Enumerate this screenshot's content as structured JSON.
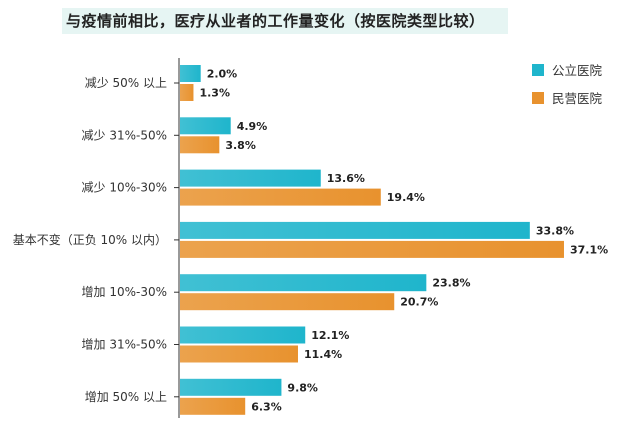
{
  "chart_data": {
    "type": "bar",
    "orientation": "horizontal",
    "title": "与疫情前相比，医疗从业者的工作量变化（按医院类型比较）",
    "categories": [
      "减少 50% 以上",
      "减少 31%-50%",
      "减少 10%-30%",
      "基本不变（正负 10% 以内）",
      "增加 10%-30%",
      "增加 31%-50%",
      "增加 50% 以上"
    ],
    "series": [
      {
        "name": "公立医院",
        "color": "#1fb5cc",
        "values": [
          2.0,
          4.9,
          13.6,
          33.8,
          23.8,
          12.1,
          9.8
        ],
        "labels": [
          "2.0%",
          "4.9%",
          "13.6%",
          "33.8%",
          "23.8%",
          "12.1%",
          "9.8%"
        ]
      },
      {
        "name": "民营医院",
        "color": "#e8922e",
        "values": [
          1.3,
          3.8,
          19.4,
          37.1,
          20.7,
          11.4,
          6.3
        ],
        "labels": [
          "1.3%",
          "3.8%",
          "19.4%",
          "37.1%",
          "20.7%",
          "11.4%",
          "6.3%"
        ]
      }
    ],
    "legend_position": "top-right",
    "grid": false
  }
}
